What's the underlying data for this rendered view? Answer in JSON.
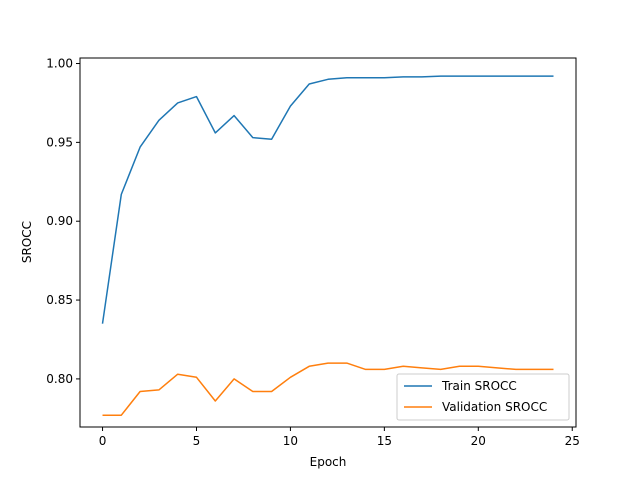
{
  "chart_data": {
    "type": "line",
    "title": "",
    "xlabel": "Epoch",
    "ylabel": "SROCC",
    "xlim": [
      -1.2,
      25.2
    ],
    "ylim": [
      0.7695,
      1.0035
    ],
    "xticks": [
      0,
      5,
      10,
      15,
      20,
      25
    ],
    "yticks": [
      0.8,
      0.85,
      0.9,
      0.95,
      1.0
    ],
    "xtick_labels": [
      "0",
      "5",
      "10",
      "15",
      "20",
      "25"
    ],
    "ytick_labels": [
      "0.80",
      "0.85",
      "0.90",
      "0.95",
      "1.00"
    ],
    "grid": false,
    "legend_position": "lower-right",
    "x": [
      0,
      1,
      2,
      3,
      4,
      5,
      6,
      7,
      8,
      9,
      10,
      11,
      12,
      13,
      14,
      15,
      16,
      17,
      18,
      19,
      20,
      21,
      22,
      23,
      24
    ],
    "series": [
      {
        "name": "Train SROCC",
        "color": "#1f77b4",
        "values": [
          0.835,
          0.917,
          0.947,
          0.964,
          0.975,
          0.979,
          0.956,
          0.967,
          0.953,
          0.952,
          0.973,
          0.987,
          0.99,
          0.991,
          0.991,
          0.991,
          0.9915,
          0.9915,
          0.992,
          0.992,
          0.992,
          0.992,
          0.992,
          0.992,
          0.992
        ]
      },
      {
        "name": "Validation SROCC",
        "color": "#ff7f0e",
        "values": [
          0.777,
          0.777,
          0.792,
          0.793,
          0.803,
          0.801,
          0.786,
          0.8,
          0.792,
          0.792,
          0.801,
          0.808,
          0.81,
          0.81,
          0.806,
          0.806,
          0.808,
          0.807,
          0.806,
          0.808,
          0.808,
          0.807,
          0.806,
          0.806,
          0.806
        ]
      }
    ]
  }
}
